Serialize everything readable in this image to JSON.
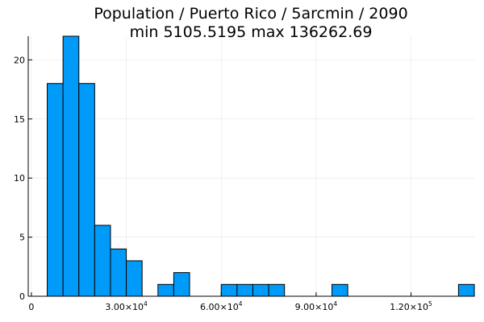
{
  "chart_data": {
    "type": "bar",
    "title": "Population / Puerto Rico / 5arcmin / 2090",
    "subtitle": "min 5105.5195  max 136262.69",
    "xlabel": "",
    "ylabel": "",
    "bar_color": "#009af9",
    "grid": true,
    "legend": "none",
    "xlim": [
      -1000,
      140000
    ],
    "ylim": [
      0,
      22
    ],
    "x_ticks": [
      {
        "value": 0,
        "mantissa": "0",
        "exponent": ""
      },
      {
        "value": 30000,
        "mantissa": "3.00×10",
        "exponent": "4"
      },
      {
        "value": 60000,
        "mantissa": "6.00×10",
        "exponent": "4"
      },
      {
        "value": 90000,
        "mantissa": "9.00×10",
        "exponent": "4"
      },
      {
        "value": 120000,
        "mantissa": "1.20×10",
        "exponent": "5"
      }
    ],
    "y_ticks": [
      0,
      5,
      10,
      15,
      20
    ],
    "bin_width": 5000,
    "bins": [
      {
        "start": 5000,
        "end": 10000,
        "count": 18
      },
      {
        "start": 10000,
        "end": 15000,
        "count": 22
      },
      {
        "start": 15000,
        "end": 20000,
        "count": 18
      },
      {
        "start": 20000,
        "end": 25000,
        "count": 6
      },
      {
        "start": 25000,
        "end": 30000,
        "count": 4
      },
      {
        "start": 30000,
        "end": 35000,
        "count": 3
      },
      {
        "start": 35000,
        "end": 40000,
        "count": 0
      },
      {
        "start": 40000,
        "end": 45000,
        "count": 1
      },
      {
        "start": 45000,
        "end": 50000,
        "count": 2
      },
      {
        "start": 50000,
        "end": 55000,
        "count": 0
      },
      {
        "start": 55000,
        "end": 60000,
        "count": 0
      },
      {
        "start": 60000,
        "end": 65000,
        "count": 1
      },
      {
        "start": 65000,
        "end": 70000,
        "count": 1
      },
      {
        "start": 70000,
        "end": 75000,
        "count": 1
      },
      {
        "start": 75000,
        "end": 80000,
        "count": 1
      },
      {
        "start": 80000,
        "end": 85000,
        "count": 0
      },
      {
        "start": 85000,
        "end": 90000,
        "count": 0
      },
      {
        "start": 90000,
        "end": 95000,
        "count": 0
      },
      {
        "start": 95000,
        "end": 100000,
        "count": 1
      },
      {
        "start": 100000,
        "end": 105000,
        "count": 0
      },
      {
        "start": 105000,
        "end": 110000,
        "count": 0
      },
      {
        "start": 110000,
        "end": 115000,
        "count": 0
      },
      {
        "start": 115000,
        "end": 120000,
        "count": 0
      },
      {
        "start": 120000,
        "end": 125000,
        "count": 0
      },
      {
        "start": 125000,
        "end": 130000,
        "count": 0
      },
      {
        "start": 130000,
        "end": 135000,
        "count": 0
      },
      {
        "start": 135000,
        "end": 140000,
        "count": 1
      }
    ]
  }
}
